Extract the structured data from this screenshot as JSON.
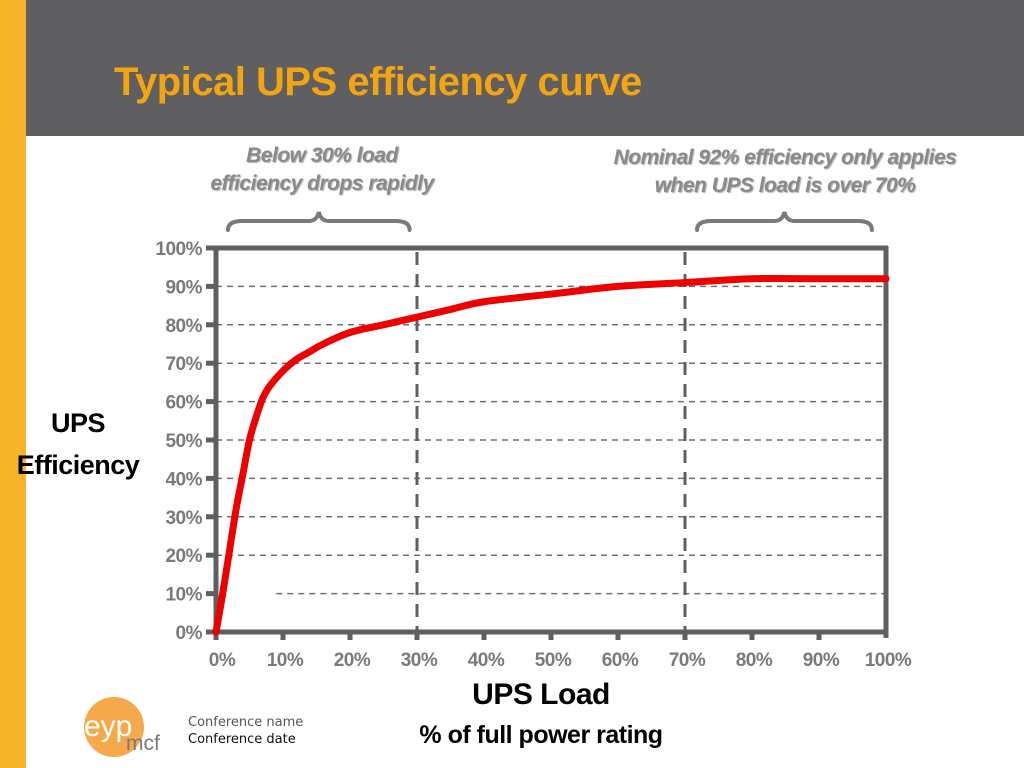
{
  "slide": {
    "title": "Typical UPS efficiency curve",
    "accent_color": "#f7b52a",
    "header_color": "#5f5f61",
    "title_color": "#f2a511"
  },
  "annotations": {
    "left": {
      "line1": "Below 30% load",
      "line2": "efficiency drops rapidly"
    },
    "right": {
      "line1": "Nominal 92% efficiency only applies",
      "line2": "when UPS load is over 70%"
    }
  },
  "footer": {
    "logo_text_main": "eyp",
    "logo_text_sub": "mcf",
    "conference_name": "Conference name",
    "conference_date": "Conference date"
  },
  "chart_data": {
    "type": "line",
    "title": "Typical UPS efficiency curve",
    "xlabel": "UPS Load",
    "xlabel_sub": "% of full power rating",
    "ylabel_line1": "UPS",
    "ylabel_line2": "Efficiency",
    "xlim": [
      0,
      100
    ],
    "ylim": [
      0,
      100
    ],
    "x_ticks": [
      0,
      10,
      20,
      30,
      40,
      50,
      60,
      70,
      80,
      90,
      100
    ],
    "y_ticks": [
      0,
      10,
      20,
      30,
      40,
      50,
      60,
      70,
      80,
      90,
      100
    ],
    "x_tick_labels": [
      "0%",
      "10%",
      "20%",
      "30%",
      "40%",
      "50%",
      "60%",
      "70%",
      "80%",
      "90%",
      "100%"
    ],
    "y_tick_labels": [
      "0%",
      "10%",
      "20%",
      "30%",
      "40%",
      "50%",
      "60%",
      "70%",
      "80%",
      "90%",
      "100%"
    ],
    "grid": "horizontal dashed",
    "reference_lines_x": [
      30,
      70
    ],
    "bracket_ranges": [
      [
        0,
        28
      ],
      [
        70,
        97
      ]
    ],
    "series": [
      {
        "name": "UPS efficiency",
        "color": "#ee0000",
        "x": [
          0,
          1,
          2,
          3,
          4,
          5,
          6,
          7,
          8,
          10,
          12,
          14,
          16,
          20,
          25,
          30,
          35,
          40,
          50,
          60,
          70,
          80,
          90,
          100
        ],
        "y": [
          0,
          10,
          21,
          32,
          41,
          50,
          56,
          61,
          64,
          68,
          71,
          73,
          75,
          78,
          80,
          82,
          84,
          86,
          88,
          90,
          91,
          92,
          92,
          92
        ]
      }
    ]
  }
}
